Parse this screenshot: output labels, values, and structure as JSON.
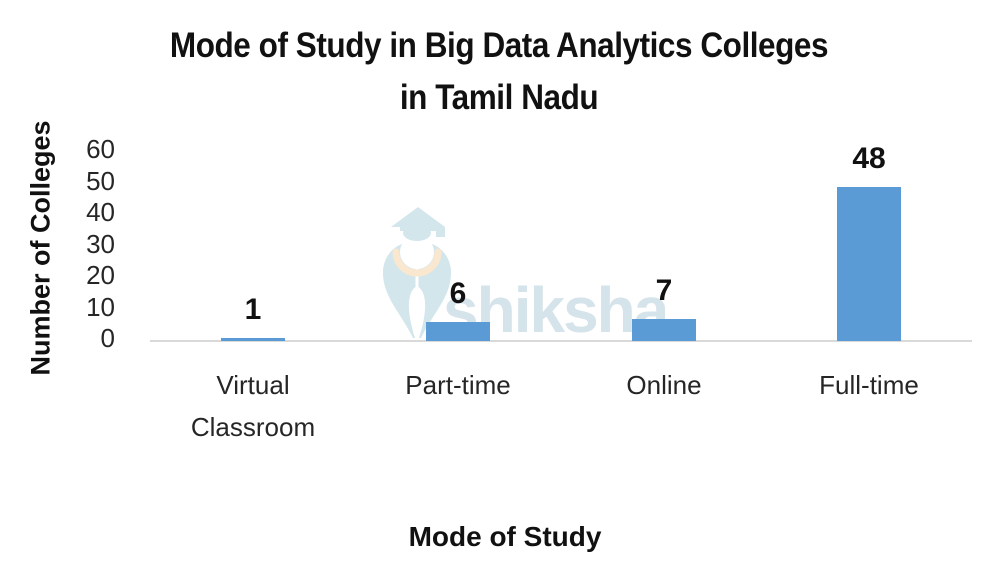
{
  "chart_data": {
    "type": "bar",
    "title": "Mode of Study in Big Data Analytics Colleges in Tamil Nadu",
    "title_lines": [
      "Mode of Study in Big Data Analytics Colleges",
      "in Tamil Nadu"
    ],
    "categories": [
      "Virtual Classroom",
      "Part-time",
      "Online",
      "Full-time"
    ],
    "values": [
      1,
      6,
      7,
      48
    ],
    "data_labels": [
      "1",
      "6",
      "7",
      "48"
    ],
    "xlabel": "Mode of Study",
    "ylabel": "Number of Colleges",
    "yticks": [
      60,
      50,
      40,
      30,
      20,
      10,
      0
    ],
    "ylim": [
      0,
      60
    ],
    "grid": false,
    "legend": false,
    "bar_color": "#5b9bd5",
    "axis_line_color": "#d9d9d9",
    "text_color": "#1c1c1c"
  },
  "watermark": {
    "text": "shiksha",
    "text_color": "#d5e3ea",
    "logo_blue": "#d3e6ec",
    "logo_peach": "#f9e7cf"
  }
}
